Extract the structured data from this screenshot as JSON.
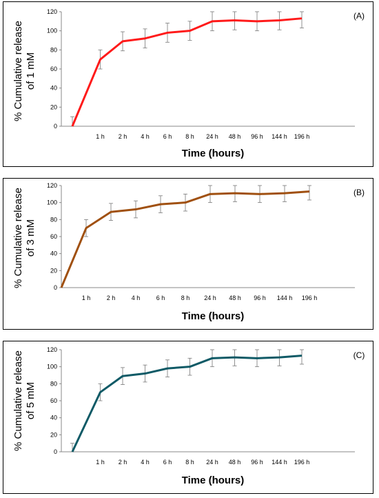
{
  "chart_data": [
    {
      "type": "line",
      "panel_label": "(A)",
      "ylabel_line1": "% Cumulative release",
      "ylabel_line2": "of 1 mM",
      "xlabel": "Time (hours)",
      "categories": [
        "",
        "1 h",
        "2 h",
        "4 h",
        "6 h",
        "8 h",
        "24 h",
        "48 h",
        "96 h",
        "144 h",
        "196 h"
      ],
      "y_ticks": [
        "0",
        "20",
        "40",
        "60",
        "80",
        "100",
        "120"
      ],
      "ylim": [
        0,
        120
      ],
      "grid": false,
      "color": "#ff1a1a",
      "series": [
        {
          "values": [
            0,
            70,
            89,
            92,
            98,
            100,
            110,
            111,
            110,
            111,
            113
          ],
          "errors": [
            10,
            10,
            10,
            10,
            10,
            10,
            10,
            10,
            10,
            10,
            10
          ]
        }
      ]
    },
    {
      "type": "line",
      "panel_label": "(B)",
      "ylabel_line1": "% Cumulative release",
      "ylabel_line2": "of 3 mM",
      "xlabel": "Time (hours)",
      "categories": [
        "",
        "1 h",
        "2 h",
        "4 h",
        "6 h",
        "8 h",
        "24 h",
        "48 h",
        "96 h",
        "144 h",
        "196 h"
      ],
      "y_ticks": [
        "0",
        "20",
        "40",
        "60",
        "80",
        "100",
        "120"
      ],
      "ylim": [
        0,
        120
      ],
      "grid": false,
      "color": "#a05010",
      "series": [
        {
          "values": [
            0,
            70,
            89,
            92,
            98,
            100,
            110,
            111,
            110,
            111,
            113
          ],
          "errors": [
            0,
            10,
            10,
            10,
            10,
            10,
            10,
            10,
            10,
            10,
            10
          ]
        }
      ]
    },
    {
      "type": "line",
      "panel_label": "(C)",
      "ylabel_line1": "% Cumulative release",
      "ylabel_line2": "of 5 mM",
      "xlabel": "Time (hours)",
      "categories": [
        "",
        "1 h",
        "2 h",
        "4 h",
        "6 h",
        "8 h",
        "24 h",
        "48 h",
        "96 h",
        "144 h",
        "196 h"
      ],
      "y_ticks": [
        "0",
        "20",
        "40",
        "60",
        "80",
        "100",
        "120"
      ],
      "ylim": [
        0,
        120
      ],
      "grid": false,
      "color": "#0f5a66",
      "series": [
        {
          "values": [
            0,
            70,
            89,
            92,
            98,
            100,
            110,
            111,
            110,
            111,
            113
          ],
          "errors": [
            10,
            10,
            10,
            10,
            10,
            10,
            10,
            10,
            10,
            10,
            10
          ]
        }
      ]
    }
  ]
}
